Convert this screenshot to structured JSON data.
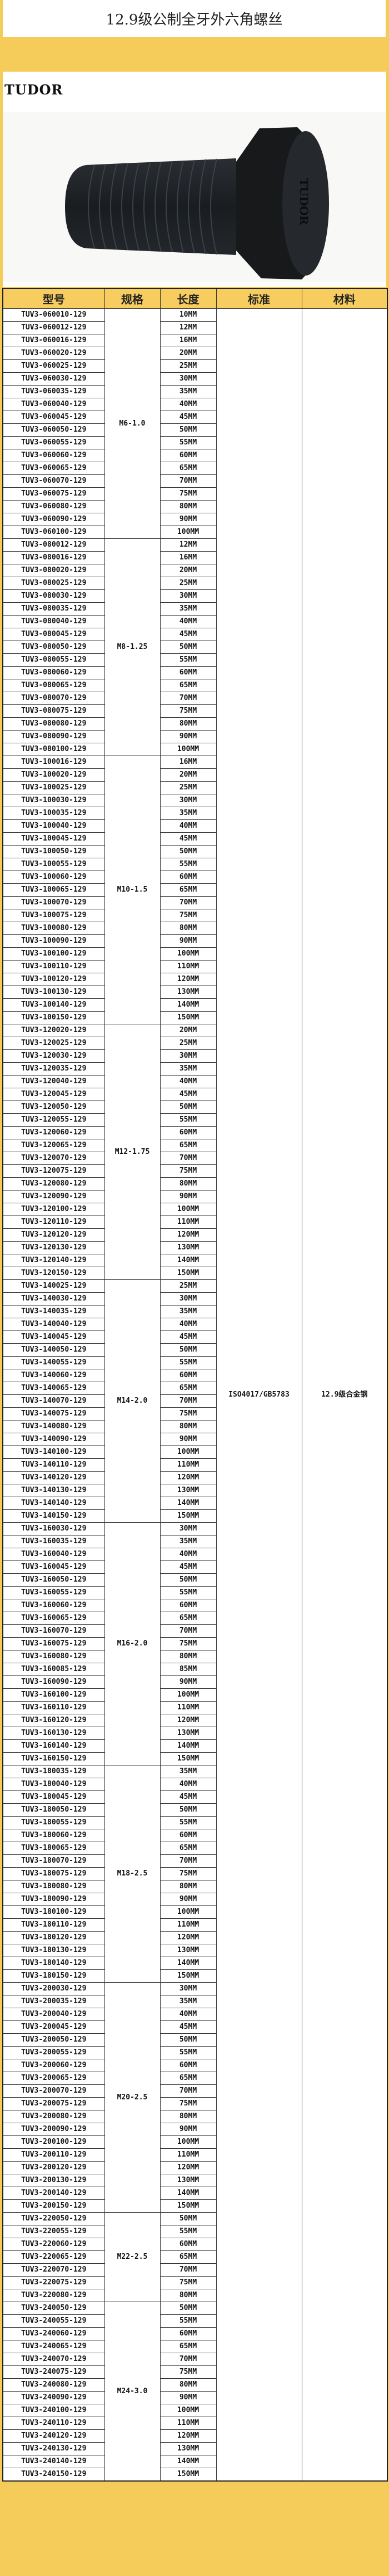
{
  "title": "12.9级公制全牙外六角螺丝",
  "brand": "TUDOR",
  "product_image": {
    "icon": "hex-bolt-image",
    "head_marking": "TUDOR"
  },
  "colors": {
    "frame": "#f5cc5a",
    "header": "#f6cd5e",
    "bolt": "#1c1f22"
  },
  "table": {
    "headers": [
      "型号",
      "规格",
      "长度",
      "标准",
      "材料"
    ],
    "standard": "ISO4017/GB5783",
    "material": "12.9级合金钢",
    "groups": [
      {
        "spec": "M6-1.0",
        "models": [
          "TUV3-060010-129",
          "TUV3-060012-129",
          "TUV3-060016-129",
          "TUV3-060020-129",
          "TUV3-060025-129",
          "TUV3-060030-129",
          "TUV3-060035-129",
          "TUV3-060040-129",
          "TUV3-060045-129",
          "TUV3-060050-129",
          "TUV3-060055-129",
          "TUV3-060060-129",
          "TUV3-060065-129",
          "TUV3-060070-129",
          "TUV3-060075-129",
          "TUV3-060080-129",
          "TUV3-060090-129",
          "TUV3-060100-129"
        ],
        "lengths": [
          "10MM",
          "12MM",
          "16MM",
          "20MM",
          "25MM",
          "30MM",
          "35MM",
          "40MM",
          "45MM",
          "50MM",
          "55MM",
          "60MM",
          "65MM",
          "70MM",
          "75MM",
          "80MM",
          "90MM",
          "100MM"
        ]
      },
      {
        "spec": "M8-1.25",
        "models": [
          "TUV3-080012-129",
          "TUV3-080016-129",
          "TUV3-080020-129",
          "TUV3-080025-129",
          "TUV3-080030-129",
          "TUV3-080035-129",
          "TUV3-080040-129",
          "TUV3-080045-129",
          "TUV3-080050-129",
          "TUV3-080055-129",
          "TUV3-080060-129",
          "TUV3-080065-129",
          "TUV3-080070-129",
          "TUV3-080075-129",
          "TUV3-080080-129",
          "TUV3-080090-129",
          "TUV3-080100-129"
        ],
        "lengths": [
          "12MM",
          "16MM",
          "20MM",
          "25MM",
          "30MM",
          "35MM",
          "40MM",
          "45MM",
          "50MM",
          "55MM",
          "60MM",
          "65MM",
          "70MM",
          "75MM",
          "80MM",
          "90MM",
          "100MM"
        ]
      },
      {
        "spec": "M10-1.5",
        "models": [
          "TUV3-100016-129",
          "TUV3-100020-129",
          "TUV3-100025-129",
          "TUV3-100030-129",
          "TUV3-100035-129",
          "TUV3-100040-129",
          "TUV3-100045-129",
          "TUV3-100050-129",
          "TUV3-100055-129",
          "TUV3-100060-129",
          "TUV3-100065-129",
          "TUV3-100070-129",
          "TUV3-100075-129",
          "TUV3-100080-129",
          "TUV3-100090-129",
          "TUV3-100100-129",
          "TUV3-100110-129",
          "TUV3-100120-129",
          "TUV3-100130-129",
          "TUV3-100140-129",
          "TUV3-100150-129"
        ],
        "lengths": [
          "16MM",
          "20MM",
          "25MM",
          "30MM",
          "35MM",
          "40MM",
          "45MM",
          "50MM",
          "55MM",
          "60MM",
          "65MM",
          "70MM",
          "75MM",
          "80MM",
          "90MM",
          "100MM",
          "110MM",
          "120MM",
          "130MM",
          "140MM",
          "150MM"
        ]
      },
      {
        "spec": "M12-1.75",
        "models": [
          "TUV3-120020-129",
          "TUV3-120025-129",
          "TUV3-120030-129",
          "TUV3-120035-129",
          "TUV3-120040-129",
          "TUV3-120045-129",
          "TUV3-120050-129",
          "TUV3-120055-129",
          "TUV3-120060-129",
          "TUV3-120065-129",
          "TUV3-120070-129",
          "TUV3-120075-129",
          "TUV3-120080-129",
          "TUV3-120090-129",
          "TUV3-120100-129",
          "TUV3-120110-129",
          "TUV3-120120-129",
          "TUV3-120130-129",
          "TUV3-120140-129",
          "TUV3-120150-129"
        ],
        "lengths": [
          "20MM",
          "25MM",
          "30MM",
          "35MM",
          "40MM",
          "45MM",
          "50MM",
          "55MM",
          "60MM",
          "65MM",
          "70MM",
          "75MM",
          "80MM",
          "90MM",
          "100MM",
          "110MM",
          "120MM",
          "130MM",
          "140MM",
          "150MM"
        ]
      },
      {
        "spec": "M14-2.0",
        "models": [
          "TUV3-140025-129",
          "TUV3-140030-129",
          "TUV3-140035-129",
          "TUV3-140040-129",
          "TUV3-140045-129",
          "TUV3-140050-129",
          "TUV3-140055-129",
          "TUV3-140060-129",
          "TUV3-140065-129",
          "TUV3-140070-129",
          "TUV3-140075-129",
          "TUV3-140080-129",
          "TUV3-140090-129",
          "TUV3-140100-129",
          "TUV3-140110-129",
          "TUV3-140120-129",
          "TUV3-140130-129",
          "TUV3-140140-129",
          "TUV3-140150-129"
        ],
        "lengths": [
          "25MM",
          "30MM",
          "35MM",
          "40MM",
          "45MM",
          "50MM",
          "55MM",
          "60MM",
          "65MM",
          "70MM",
          "75MM",
          "80MM",
          "90MM",
          "100MM",
          "110MM",
          "120MM",
          "130MM",
          "140MM",
          "150MM"
        ]
      },
      {
        "spec": "M16-2.0",
        "models": [
          "TUV3-160030-129",
          "TUV3-160035-129",
          "TUV3-160040-129",
          "TUV3-160045-129",
          "TUV3-160050-129",
          "TUV3-160055-129",
          "TUV3-160060-129",
          "TUV3-160065-129",
          "TUV3-160070-129",
          "TUV3-160075-129",
          "TUV3-160080-129",
          "TUV3-160085-129",
          "TUV3-160090-129",
          "TUV3-160100-129",
          "TUV3-160110-129",
          "TUV3-160120-129",
          "TUV3-160130-129",
          "TUV3-160140-129",
          "TUV3-160150-129"
        ],
        "lengths": [
          "30MM",
          "35MM",
          "40MM",
          "45MM",
          "50MM",
          "55MM",
          "60MM",
          "65MM",
          "70MM",
          "75MM",
          "80MM",
          "85MM",
          "90MM",
          "100MM",
          "110MM",
          "120MM",
          "130MM",
          "140MM",
          "150MM"
        ]
      },
      {
        "spec": "M18-2.5",
        "models": [
          "TUV3-180035-129",
          "TUV3-180040-129",
          "TUV3-180045-129",
          "TUV3-180050-129",
          "TUV3-180055-129",
          "TUV3-180060-129",
          "TUV3-180065-129",
          "TUV3-180070-129",
          "TUV3-180075-129",
          "TUV3-180080-129",
          "TUV3-180090-129",
          "TUV3-180100-129",
          "TUV3-180110-129",
          "TUV3-180120-129",
          "TUV3-180130-129",
          "TUV3-180140-129",
          "TUV3-180150-129"
        ],
        "lengths": [
          "35MM",
          "40MM",
          "45MM",
          "50MM",
          "55MM",
          "60MM",
          "65MM",
          "70MM",
          "75MM",
          "80MM",
          "90MM",
          "100MM",
          "110MM",
          "120MM",
          "130MM",
          "140MM",
          "150MM"
        ]
      },
      {
        "spec": "M20-2.5",
        "models": [
          "TUV3-200030-129",
          "TUV3-200035-129",
          "TUV3-200040-129",
          "TUV3-200045-129",
          "TUV3-200050-129",
          "TUV3-200055-129",
          "TUV3-200060-129",
          "TUV3-200065-129",
          "TUV3-200070-129",
          "TUV3-200075-129",
          "TUV3-200080-129",
          "TUV3-200090-129",
          "TUV3-200100-129",
          "TUV3-200110-129",
          "TUV3-200120-129",
          "TUV3-200130-129",
          "TUV3-200140-129",
          "TUV3-200150-129"
        ],
        "lengths": [
          "30MM",
          "35MM",
          "40MM",
          "45MM",
          "50MM",
          "55MM",
          "60MM",
          "65MM",
          "70MM",
          "75MM",
          "80MM",
          "90MM",
          "100MM",
          "110MM",
          "120MM",
          "130MM",
          "140MM",
          "150MM"
        ]
      },
      {
        "spec": "M22-2.5",
        "models": [
          "TUV3-220050-129",
          "TUV3-220055-129",
          "TUV3-220060-129",
          "TUV3-220065-129",
          "TUV3-220070-129",
          "TUV3-220075-129",
          "TUV3-220080-129"
        ],
        "lengths": [
          "50MM",
          "55MM",
          "60MM",
          "65MM",
          "70MM",
          "75MM",
          "80MM"
        ]
      },
      {
        "spec": "M24-3.0",
        "models": [
          "TUV3-240050-129",
          "TUV3-240055-129",
          "TUV3-240060-129",
          "TUV3-240065-129",
          "TUV3-240070-129",
          "TUV3-240075-129",
          "TUV3-240080-129",
          "TUV3-240090-129",
          "TUV3-240100-129",
          "TUV3-240110-129",
          "TUV3-240120-129",
          "TUV3-240130-129",
          "TUV3-240140-129",
          "TUV3-240150-129"
        ],
        "lengths": [
          "50MM",
          "55MM",
          "60MM",
          "65MM",
          "70MM",
          "75MM",
          "80MM",
          "90MM",
          "100MM",
          "110MM",
          "120MM",
          "130MM",
          "140MM",
          "150MM"
        ]
      }
    ]
  }
}
